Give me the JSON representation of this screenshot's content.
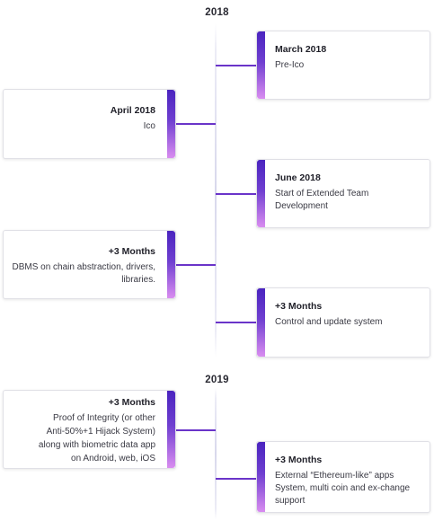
{
  "timeline": {
    "years": [
      "2018",
      "2019"
    ],
    "items": [
      {
        "side": "right",
        "title": "March 2018",
        "desc": "Pre-Ico"
      },
      {
        "side": "left",
        "title": "April 2018",
        "desc": "Ico"
      },
      {
        "side": "right",
        "title": "June 2018",
        "desc": "Start of Extended Team Development"
      },
      {
        "side": "left",
        "title": "+3 Months",
        "desc": "DBMS on chain abstraction, drivers, libraries."
      },
      {
        "side": "right",
        "title": "+3 Months",
        "desc": "Control and update system"
      },
      {
        "side": "left",
        "title": "+3 Months",
        "desc": "Proof of Integrity (or other Anti-50%+1 Hijack System) along with biometric data app on Android, web, iOS"
      },
      {
        "side": "right",
        "title": "+3 Months",
        "desc": "External “Ethereum-like” apps System, multi coin and ex-change support"
      }
    ]
  },
  "colors": {
    "accent_top": "#4a24bf",
    "accent_bottom": "#d98df0",
    "connector": "#6a34c9"
  }
}
